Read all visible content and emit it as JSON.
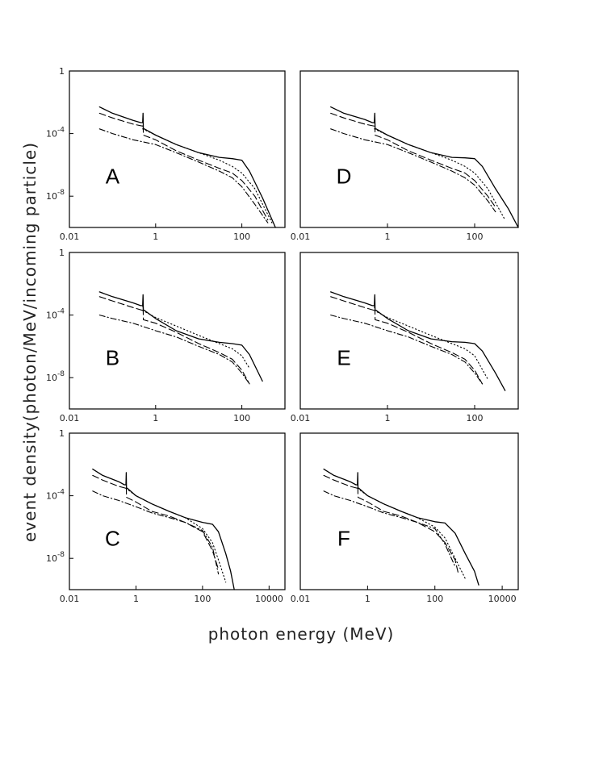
{
  "figure": {
    "ylabel": "event density(photon/MeV/incoming particle)",
    "xlabel": "photon energy (MeV)"
  },
  "chart_data": [
    {
      "type": "line",
      "panel": "A",
      "xscale": "log",
      "yscale": "log",
      "xlim": [
        0.01,
        1000
      ],
      "ylim": [
        1e-10,
        1
      ],
      "xticks": [
        "0.01",
        "1",
        "100"
      ],
      "yticks": [
        "1",
        "10^-4",
        "10^-8"
      ],
      "series": [
        {
          "style": "solid",
          "x": [
            0.05,
            0.1,
            0.3,
            0.45,
            0.5,
            0.511,
            0.52,
            0.55,
            1,
            3,
            10,
            30,
            60,
            100,
            150,
            300,
            600
          ],
          "y": [
            0.005,
            0.002,
            0.0007,
            0.0005,
            0.0005,
            0.002,
            0.0002,
            0.0002,
            8e-05,
            2e-05,
            6e-06,
            3e-06,
            2.5e-06,
            2e-06,
            4e-07,
            8e-09,
            1e-10
          ]
        },
        {
          "style": "dashed",
          "x": [
            0.05,
            0.1,
            0.3,
            0.5,
            0.511,
            0.52,
            1,
            3,
            10,
            30,
            60,
            100,
            200,
            400
          ],
          "y": [
            0.002,
            0.001,
            0.0004,
            0.0003,
            0.0008,
            8e-05,
            4e-05,
            8e-06,
            2e-06,
            6e-07,
            3e-07,
            1e-07,
            1e-08,
            3e-10
          ]
        },
        {
          "style": "dotted",
          "x": [
            0.5,
            1,
            3,
            10,
            30,
            60,
            100,
            200,
            500
          ],
          "y": [
            0.0002,
            8e-05,
            2e-05,
            6e-06,
            2e-06,
            8e-07,
            3e-07,
            3e-08,
            2e-10
          ]
        },
        {
          "style": "dashdot",
          "x": [
            0.05,
            0.1,
            0.3,
            1,
            3,
            10,
            30,
            60,
            100,
            200,
            400
          ],
          "y": [
            0.0002,
            0.0001,
            4e-05,
            2e-05,
            6e-06,
            1.5e-06,
            4e-07,
            1.5e-07,
            4e-08,
            3e-09,
            2e-10
          ]
        }
      ]
    },
    {
      "type": "line",
      "panel": "B",
      "xscale": "log",
      "yscale": "log",
      "xlim": [
        0.01,
        1000
      ],
      "ylim": [
        1e-10,
        1
      ],
      "xticks": [
        "0.01",
        "1",
        "100"
      ],
      "yticks": [
        "1",
        "10^-4",
        "10^-8"
      ],
      "series": [
        {
          "style": "solid",
          "x": [
            0.05,
            0.1,
            0.3,
            0.45,
            0.5,
            0.511,
            0.52,
            0.55,
            1,
            3,
            10,
            30,
            60,
            100,
            150,
            300
          ],
          "y": [
            0.003,
            0.0015,
            0.0006,
            0.0004,
            0.0004,
            0.002,
            0.0002,
            0.0002,
            6e-05,
            1e-05,
            3e-06,
            1.8e-06,
            1.5e-06,
            1.2e-06,
            3e-07,
            6e-09
          ]
        },
        {
          "style": "dashed",
          "x": [
            0.05,
            0.1,
            0.3,
            0.5,
            0.511,
            0.52,
            1,
            3,
            10,
            30,
            60,
            100,
            150
          ],
          "y": [
            0.0015,
            0.0008,
            0.0003,
            0.0002,
            0.0006,
            5e-05,
            3e-05,
            8e-06,
            1.5e-06,
            4e-07,
            1.5e-07,
            3e-08,
            4e-09
          ]
        },
        {
          "style": "dotted",
          "x": [
            0.5,
            1,
            3,
            10,
            30,
            60,
            100,
            150
          ],
          "y": [
            0.0002,
            7e-05,
            2e-05,
            5e-06,
            1.5e-06,
            7e-07,
            2.5e-07,
            4e-08
          ]
        },
        {
          "style": "dashdot",
          "x": [
            0.05,
            0.1,
            0.3,
            1,
            3,
            10,
            30,
            60,
            100,
            150
          ],
          "y": [
            0.0001,
            6e-05,
            3e-05,
            1e-05,
            4e-06,
            1e-06,
            3e-07,
            1e-07,
            2e-08,
            4e-09
          ]
        }
      ]
    },
    {
      "type": "line",
      "panel": "C",
      "xscale": "log",
      "yscale": "log",
      "xlim": [
        0.01,
        30000
      ],
      "ylim": [
        1e-10,
        1
      ],
      "xticks": [
        "0.01",
        "1",
        "100",
        "10000"
      ],
      "yticks": [
        "1",
        "10^-4",
        "10^-8"
      ],
      "series": [
        {
          "style": "solid",
          "x": [
            0.05,
            0.1,
            0.3,
            0.45,
            0.5,
            0.511,
            0.52,
            0.55,
            1,
            3,
            10,
            30,
            100,
            200,
            300,
            500,
            700,
            900
          ],
          "y": [
            0.005,
            0.002,
            0.0008,
            0.0005,
            0.0005,
            0.003,
            0.0003,
            0.0003,
            0.0001,
            3e-05,
            1e-05,
            4e-06,
            2e-06,
            1.5e-06,
            5e-07,
            2e-08,
            1.5e-09,
            1e-10
          ]
        },
        {
          "style": "dashed",
          "x": [
            0.05,
            0.1,
            0.3,
            0.5,
            0.511,
            0.52,
            1,
            3,
            10,
            30,
            100,
            200,
            300
          ],
          "y": [
            0.002,
            0.001,
            0.0004,
            0.0003,
            0.0008,
            8e-05,
            4e-05,
            1e-05,
            5e-06,
            2e-06,
            5e-07,
            3e-08,
            2e-09
          ]
        },
        {
          "style": "dotted",
          "x": [
            0.5,
            1,
            3,
            10,
            30,
            100,
            200,
            300,
            500
          ],
          "y": [
            0.0003,
            0.0001,
            3e-05,
            1e-05,
            4e-06,
            8e-07,
            1e-07,
            8e-09,
            3e-10
          ]
        },
        {
          "style": "dashdot",
          "x": [
            0.05,
            0.1,
            0.3,
            1,
            3,
            10,
            30,
            100,
            200,
            300
          ],
          "y": [
            0.0002,
            0.0001,
            5e-05,
            2e-05,
            8e-06,
            4e-06,
            2e-06,
            6e-07,
            5e-08,
            1e-09
          ]
        }
      ]
    },
    {
      "type": "line",
      "panel": "D",
      "xscale": "log",
      "yscale": "log",
      "xlim": [
        0.01,
        1000
      ],
      "ylim": [
        1e-10,
        1
      ],
      "xticks": [
        "0.01",
        "1",
        "100"
      ],
      "yticks": [],
      "series": [
        {
          "style": "solid",
          "x": [
            0.05,
            0.1,
            0.3,
            0.45,
            0.5,
            0.511,
            0.52,
            0.55,
            1,
            3,
            10,
            30,
            60,
            100,
            150,
            300,
            600,
            1000
          ],
          "y": [
            0.005,
            0.002,
            0.0008,
            0.0005,
            0.0005,
            0.002,
            0.0002,
            0.0002,
            8e-05,
            2e-05,
            6e-06,
            3e-06,
            2.8e-06,
            2.5e-06,
            8e-07,
            3e-08,
            1.5e-09,
            1e-10
          ]
        },
        {
          "style": "dashed",
          "x": [
            0.05,
            0.1,
            0.3,
            0.5,
            0.511,
            0.52,
            1,
            3,
            10,
            30,
            60,
            100,
            200,
            300
          ],
          "y": [
            0.002,
            0.001,
            0.0004,
            0.0003,
            0.0008,
            8e-05,
            4e-05,
            8e-06,
            2e-06,
            6e-07,
            3e-07,
            1e-07,
            1e-08,
            2e-09
          ]
        },
        {
          "style": "dotted",
          "x": [
            0.5,
            1,
            3,
            10,
            30,
            60,
            100,
            200,
            500
          ],
          "y": [
            0.0002,
            8e-05,
            2e-05,
            6e-06,
            2e-06,
            8e-07,
            3e-07,
            3e-08,
            3e-10
          ]
        },
        {
          "style": "dashdot",
          "x": [
            0.05,
            0.1,
            0.3,
            1,
            3,
            10,
            30,
            60,
            100,
            200,
            300
          ],
          "y": [
            0.0002,
            0.0001,
            4e-05,
            2e-05,
            6e-06,
            1.5e-06,
            4e-07,
            1.5e-07,
            5e-08,
            5e-09,
            1e-09
          ]
        }
      ]
    },
    {
      "type": "line",
      "panel": "E",
      "xscale": "log",
      "yscale": "log",
      "xlim": [
        0.01,
        1000
      ],
      "ylim": [
        1e-10,
        1
      ],
      "xticks": [
        "0.01",
        "1",
        "100"
      ],
      "yticks": [],
      "series": [
        {
          "style": "solid",
          "x": [
            0.05,
            0.1,
            0.3,
            0.45,
            0.5,
            0.511,
            0.52,
            0.55,
            1,
            3,
            10,
            30,
            60,
            100,
            150,
            300,
            500
          ],
          "y": [
            0.003,
            0.0015,
            0.0006,
            0.0004,
            0.0004,
            0.002,
            0.0002,
            0.0002,
            6e-05,
            1e-05,
            3e-06,
            2e-06,
            1.8e-06,
            1.5e-06,
            5e-07,
            2e-08,
            1.5e-09
          ]
        },
        {
          "style": "dashed",
          "x": [
            0.05,
            0.1,
            0.3,
            0.5,
            0.511,
            0.52,
            1,
            3,
            10,
            30,
            60,
            100,
            150
          ],
          "y": [
            0.0015,
            0.0008,
            0.0003,
            0.0002,
            0.0006,
            5e-05,
            3e-05,
            8e-06,
            1.5e-06,
            4e-07,
            1.5e-07,
            3e-08,
            4e-09
          ]
        },
        {
          "style": "dotted",
          "x": [
            0.5,
            1,
            3,
            10,
            30,
            60,
            100,
            200
          ],
          "y": [
            0.0002,
            7e-05,
            2e-05,
            5e-06,
            1.5e-06,
            7e-07,
            2.5e-07,
            8e-09
          ]
        },
        {
          "style": "dashdot",
          "x": [
            0.05,
            0.1,
            0.3,
            1,
            3,
            10,
            30,
            60,
            100,
            150
          ],
          "y": [
            0.0001,
            6e-05,
            3e-05,
            1e-05,
            4e-06,
            1e-06,
            3e-07,
            1e-07,
            2e-08,
            4e-09
          ]
        }
      ]
    },
    {
      "type": "line",
      "panel": "F",
      "xscale": "log",
      "yscale": "log",
      "xlim": [
        0.01,
        30000
      ],
      "ylim": [
        1e-10,
        1
      ],
      "xticks": [
        "0.01",
        "1",
        "100",
        "10000"
      ],
      "yticks": [],
      "series": [
        {
          "style": "solid",
          "x": [
            0.05,
            0.1,
            0.3,
            0.45,
            0.5,
            0.511,
            0.52,
            0.55,
            1,
            3,
            10,
            30,
            100,
            200,
            400,
            800,
            1500,
            2000
          ],
          "y": [
            0.005,
            0.002,
            0.0008,
            0.0005,
            0.0005,
            0.003,
            0.0003,
            0.0003,
            0.0001,
            3e-05,
            1e-05,
            4e-06,
            2.2e-06,
            1.8e-06,
            4e-07,
            2e-08,
            1.5e-09,
            2e-10
          ]
        },
        {
          "style": "dashed",
          "x": [
            0.05,
            0.1,
            0.3,
            0.5,
            0.511,
            0.52,
            1,
            3,
            10,
            30,
            100,
            200,
            400,
            500
          ],
          "y": [
            0.002,
            0.001,
            0.0004,
            0.0003,
            0.0008,
            8e-05,
            4e-05,
            1e-05,
            5e-06,
            2e-06,
            5e-07,
            1e-07,
            8e-09,
            1e-09
          ]
        },
        {
          "style": "dotted",
          "x": [
            0.5,
            1,
            3,
            10,
            30,
            100,
            200,
            400,
            800
          ],
          "y": [
            0.0003,
            0.0001,
            3e-05,
            1e-05,
            4e-06,
            1e-06,
            2e-07,
            1e-08,
            5e-10
          ]
        },
        {
          "style": "dashdot",
          "x": [
            0.05,
            0.1,
            0.3,
            1,
            3,
            10,
            30,
            100,
            200,
            400
          ],
          "y": [
            0.0002,
            0.0001,
            5e-05,
            2e-05,
            8e-06,
            4e-06,
            2e-06,
            8e-07,
            8e-08,
            3e-09
          ]
        }
      ]
    }
  ]
}
